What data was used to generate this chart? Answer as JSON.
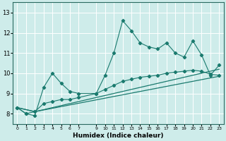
{
  "xlabel": "Humidex (Indice chaleur)",
  "x_ticks": [
    0,
    1,
    2,
    3,
    4,
    5,
    6,
    7,
    9,
    10,
    11,
    12,
    13,
    14,
    15,
    16,
    17,
    18,
    19,
    20,
    21,
    22,
    23
  ],
  "ylim": [
    7.5,
    13.5
  ],
  "xlim": [
    -0.5,
    23.5
  ],
  "yticks": [
    8,
    9,
    10,
    11,
    12,
    13
  ],
  "background_color": "#ceecea",
  "grid_color": "#e8f8f7",
  "line_color": "#1a7a6e",
  "line1_x": [
    0,
    1,
    2,
    3,
    4,
    5,
    6,
    7,
    9,
    10,
    11,
    12,
    13,
    14,
    15,
    16,
    17,
    18,
    19,
    20,
    21,
    22,
    23
  ],
  "line1_y": [
    8.3,
    8.0,
    7.9,
    9.3,
    10.0,
    9.5,
    9.1,
    9.0,
    9.0,
    9.9,
    11.0,
    12.6,
    12.1,
    11.5,
    11.3,
    11.2,
    11.5,
    11.0,
    10.8,
    11.6,
    10.9,
    9.9,
    10.4
  ],
  "line2_x": [
    0,
    1,
    2,
    3,
    4,
    5,
    6,
    7,
    9,
    10,
    11,
    12,
    13,
    14,
    15,
    16,
    17,
    18,
    19,
    20,
    21,
    22,
    23
  ],
  "line2_y": [
    8.3,
    8.0,
    8.1,
    8.5,
    8.6,
    8.7,
    8.7,
    8.8,
    9.0,
    9.2,
    9.4,
    9.6,
    9.7,
    9.8,
    9.85,
    9.9,
    10.0,
    10.05,
    10.1,
    10.15,
    10.1,
    9.95,
    9.9
  ],
  "line3_x": [
    0,
    2,
    23
  ],
  "line3_y": [
    8.3,
    8.1,
    9.85
  ],
  "line4_x": [
    0,
    2,
    23
  ],
  "line4_y": [
    8.3,
    8.1,
    10.2
  ]
}
